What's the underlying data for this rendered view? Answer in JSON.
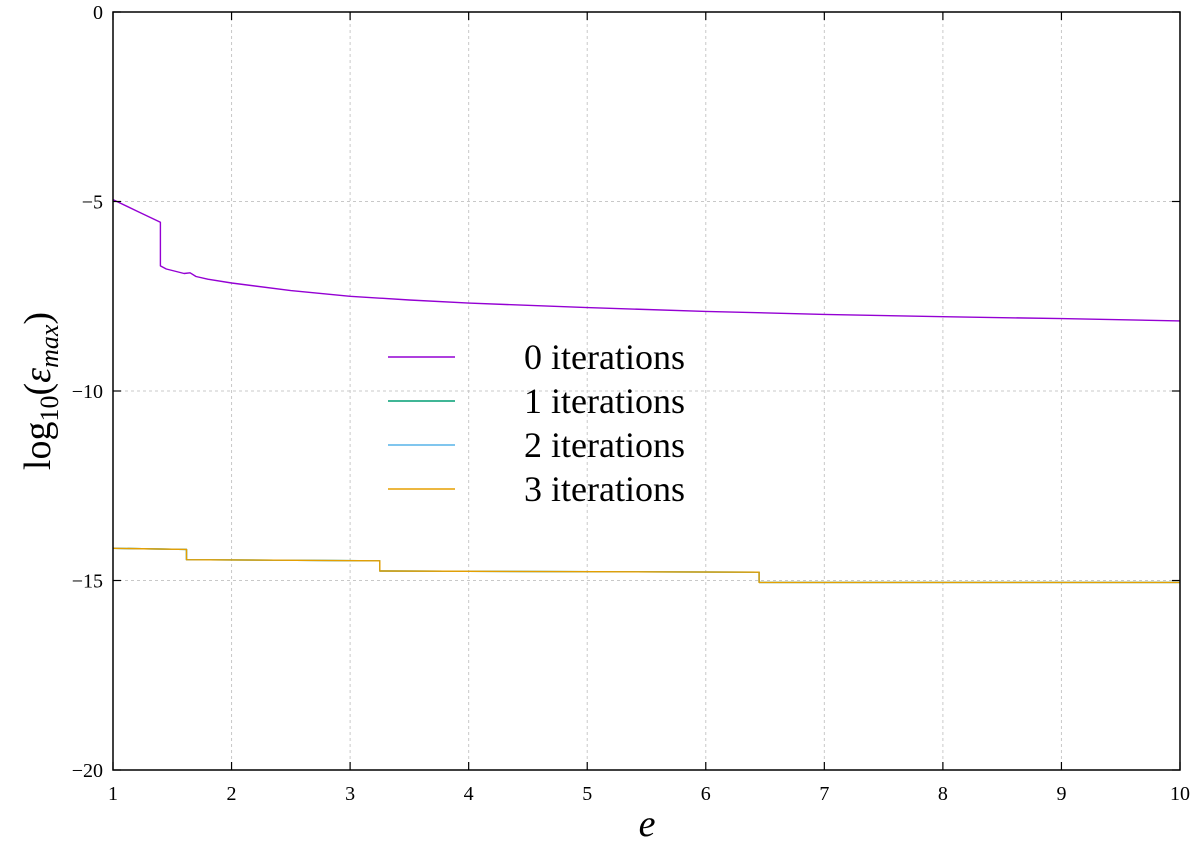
{
  "chart_data": {
    "type": "line",
    "xlabel": "e",
    "ylabel": "log10(εmax)",
    "ylabel_parts": {
      "func": "log",
      "sub": "10",
      "open": "(",
      "var": "ε",
      "var_sub": "max",
      "close": ")"
    },
    "xlim": [
      1,
      10
    ],
    "ylim": [
      -20,
      0
    ],
    "x_ticks": [
      1,
      2,
      3,
      4,
      5,
      6,
      7,
      8,
      9,
      10
    ],
    "y_ticks": [
      0,
      -5,
      -10,
      -15,
      -20
    ],
    "y_tick_labels": [
      "0",
      "−5",
      "−10",
      "−15",
      "−20"
    ],
    "grid": true,
    "legend_position": "center-left",
    "series": [
      {
        "name": "0 iterations",
        "color": "#9400d3",
        "x": [
          1.0,
          1.2,
          1.4,
          1.4,
          1.45,
          1.5,
          1.55,
          1.6,
          1.65,
          1.7,
          1.8,
          2.0,
          2.5,
          3.0,
          3.5,
          4.0,
          5.0,
          6.0,
          7.0,
          8.0,
          9.0,
          10.0
        ],
        "y": [
          -4.95,
          -5.25,
          -5.55,
          -6.7,
          -6.78,
          -6.82,
          -6.86,
          -6.9,
          -6.88,
          -6.98,
          -7.05,
          -7.15,
          -7.35,
          -7.5,
          -7.6,
          -7.68,
          -7.8,
          -7.9,
          -7.98,
          -8.04,
          -8.09,
          -8.15
        ]
      },
      {
        "name": "1 iterations",
        "color": "#009e73",
        "x": [
          1.0,
          1.62,
          1.62,
          3.25,
          3.25,
          6.45,
          6.45,
          10.0
        ],
        "y": [
          -14.15,
          -14.18,
          -14.45,
          -14.48,
          -14.75,
          -14.78,
          -15.05,
          -15.05
        ]
      },
      {
        "name": "2 iterations",
        "color": "#56b4e9",
        "x": [
          1.0,
          1.62,
          1.62,
          3.25,
          3.25,
          6.45,
          6.45,
          10.0
        ],
        "y": [
          -14.15,
          -14.18,
          -14.45,
          -14.48,
          -14.75,
          -14.78,
          -15.05,
          -15.05
        ]
      },
      {
        "name": "3 iterations",
        "color": "#e69f00",
        "x": [
          1.0,
          1.62,
          1.62,
          3.25,
          3.25,
          6.45,
          6.45,
          10.0
        ],
        "y": [
          -14.15,
          -14.18,
          -14.45,
          -14.48,
          -14.75,
          -14.78,
          -15.05,
          -15.05
        ]
      }
    ]
  }
}
